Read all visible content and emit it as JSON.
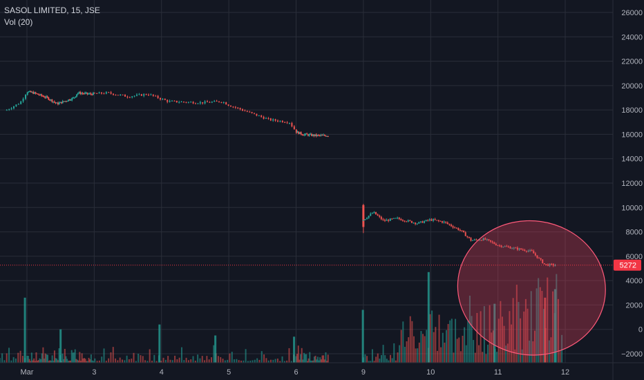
{
  "header": {
    "symbol": "SASOL LIMITED, 15, JSE",
    "indicator": "Vol (20)"
  },
  "colors": {
    "background": "#131722",
    "grid": "#2a2e39",
    "up": "#26a69a",
    "down": "#ef5350",
    "price_line": "#f23645",
    "highlight_fill": "#e0405a",
    "highlight_stroke": "#ff5a7a"
  },
  "chart_data": {
    "type": "candlestick",
    "y_axis": {
      "ticks": [
        -2000,
        0,
        2000,
        4000,
        6000,
        8000,
        10000,
        12000,
        14000,
        16000,
        18000,
        20000,
        22000,
        24000,
        26000
      ],
      "labels": [
        "−2000",
        "0",
        "2000",
        "4000",
        "6000",
        "8000",
        "10000",
        "12000",
        "14000",
        "16000",
        "18000",
        "20000",
        "22000",
        "24000",
        "26000"
      ],
      "range": [
        -3000,
        27000
      ]
    },
    "x_axis": {
      "labels": [
        {
          "label": "Mar",
          "day": 1
        },
        {
          "label": "3",
          "day": 3
        },
        {
          "label": "4",
          "day": 4
        },
        {
          "label": "5",
          "day": 5
        },
        {
          "label": "6",
          "day": 6
        },
        {
          "label": "9",
          "day": 9
        },
        {
          "label": "10",
          "day": 10
        },
        {
          "label": "11",
          "day": 11
        },
        {
          "label": "12",
          "day": 12
        }
      ]
    },
    "last_price": {
      "value": 5272,
      "label": "5272"
    },
    "price_path": [
      {
        "day": 0.7,
        "price": 18000
      },
      {
        "day": 0.9,
        "price": 18600
      },
      {
        "day": 1.0,
        "price": 19500
      },
      {
        "day": 1.2,
        "price": 19400
      },
      {
        "day": 1.6,
        "price": 19000
      },
      {
        "day": 1.9,
        "price": 18500
      },
      {
        "day": 2.2,
        "price": 18800
      },
      {
        "day": 2.4,
        "price": 19000
      },
      {
        "day": 2.5,
        "price": 19400
      },
      {
        "day": 2.9,
        "price": 19300
      },
      {
        "day": 3.2,
        "price": 19400
      },
      {
        "day": 3.5,
        "price": 19100
      },
      {
        "day": 3.8,
        "price": 19300
      },
      {
        "day": 4.1,
        "price": 18700
      },
      {
        "day": 4.6,
        "price": 18600
      },
      {
        "day": 4.9,
        "price": 18700
      },
      {
        "day": 5.0,
        "price": 18400
      },
      {
        "day": 5.3,
        "price": 17800
      },
      {
        "day": 5.6,
        "price": 17200
      },
      {
        "day": 5.9,
        "price": 17000
      },
      {
        "day": 6.0,
        "price": 16200
      },
      {
        "day": 6.2,
        "price": 16000
      },
      {
        "day": 6.6,
        "price": 15900
      },
      {
        "day": 6.95,
        "price": 15900
      }
    ],
    "price_path_2": [
      {
        "day": 9.0,
        "price": 9000
      },
      {
        "day": 9.15,
        "price": 9600
      },
      {
        "day": 9.3,
        "price": 8900
      },
      {
        "day": 9.5,
        "price": 9100
      },
      {
        "day": 9.8,
        "price": 8700
      },
      {
        "day": 10.0,
        "price": 9000
      },
      {
        "day": 10.2,
        "price": 8800
      },
      {
        "day": 10.45,
        "price": 8100
      },
      {
        "day": 10.6,
        "price": 7300
      },
      {
        "day": 10.8,
        "price": 7400
      },
      {
        "day": 11.0,
        "price": 6900
      },
      {
        "day": 11.2,
        "price": 6700
      },
      {
        "day": 11.5,
        "price": 6400
      },
      {
        "day": 11.7,
        "price": 5300
      },
      {
        "day": 11.85,
        "price": 5272
      }
    ],
    "volume_spikes": [
      {
        "day": 0.97,
        "value": 2600,
        "up": true
      },
      {
        "day": 2.0,
        "value": 0,
        "up": true
      },
      {
        "day": 3.97,
        "value": 400,
        "up": true
      },
      {
        "day": 4.8,
        "value": -500,
        "up": true
      },
      {
        "day": 5.97,
        "value": -600,
        "up": true
      },
      {
        "day": 8.97,
        "value": 1600,
        "up": true
      },
      {
        "day": 9.97,
        "value": 4700,
        "up": true
      },
      {
        "day": 10.95,
        "value": 2100,
        "up": true
      },
      {
        "day": 11.85,
        "value": 3300,
        "up": true
      },
      {
        "day": 11.7,
        "value": 2600,
        "up": false
      }
    ],
    "highlight_ellipse": {
      "day_center": 11.5,
      "value_center": 3400,
      "day_radius": 1.1,
      "value_radius": 5500
    }
  }
}
